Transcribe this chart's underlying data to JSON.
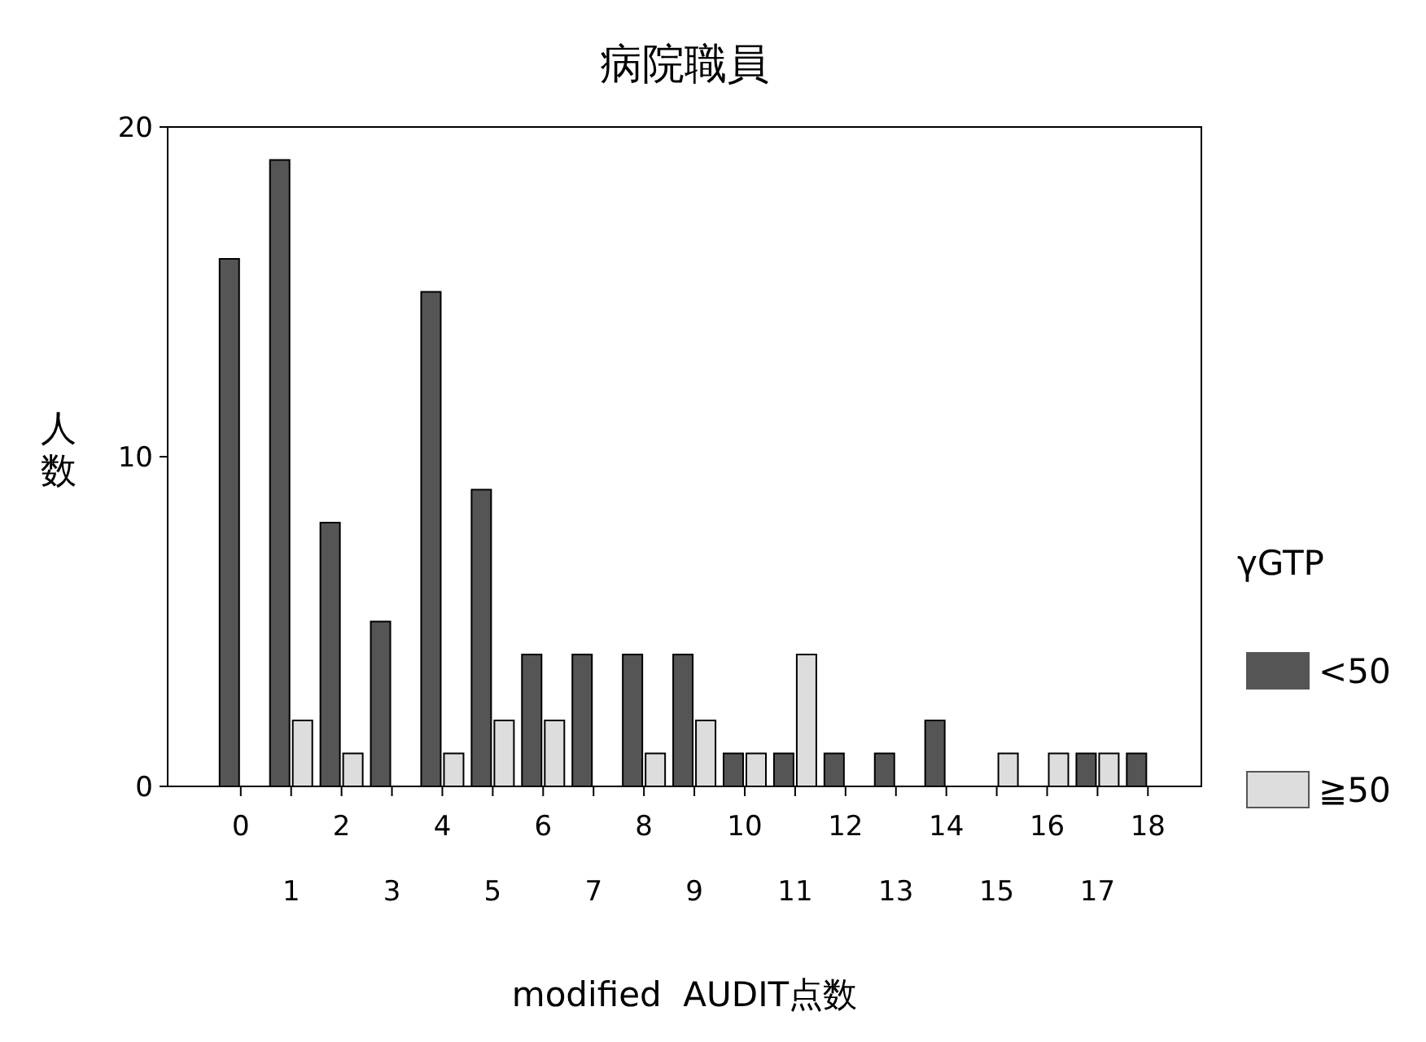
{
  "chart_data": {
    "type": "bar",
    "title": "病院職員",
    "xlabel": "modified  AUDIT点数",
    "ylabel": "人数",
    "legend_title": "γGTP",
    "categories": [
      "0",
      "1",
      "2",
      "3",
      "4",
      "5",
      "6",
      "7",
      "8",
      "9",
      "10",
      "11",
      "12",
      "13",
      "14",
      "15",
      "16",
      "17",
      "18"
    ],
    "series": [
      {
        "name": "<50",
        "color": "#555555",
        "values": [
          16,
          19,
          8,
          5,
          15,
          9,
          4,
          4,
          4,
          4,
          1,
          1,
          1,
          1,
          2,
          0,
          0,
          1,
          1
        ]
      },
      {
        "name": "≧50",
        "color": "#dddddd",
        "values": [
          0,
          2,
          1,
          0,
          1,
          2,
          2,
          0,
          1,
          2,
          1,
          4,
          0,
          0,
          0,
          1,
          1,
          1,
          0
        ]
      }
    ],
    "ylim": [
      0,
      20
    ],
    "yticks": [
      0,
      10,
      20
    ],
    "grid": false,
    "legend": "right"
  }
}
